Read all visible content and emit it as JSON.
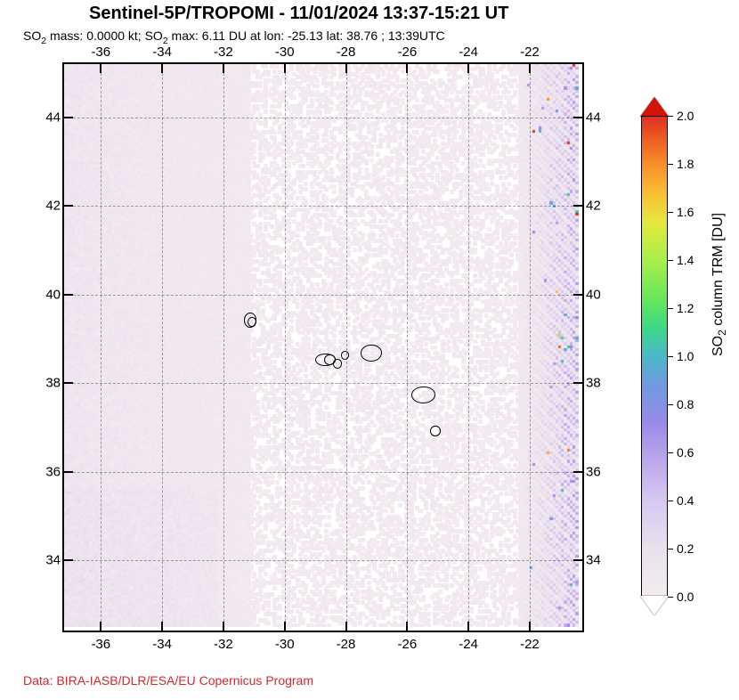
{
  "title": "Sentinel-5P/TROPOMI - 11/01/2024 13:37-15:21 UT",
  "subtitle_html": "SO<sub>2</sub> mass: 0.0000 kt; SO<sub>2</sub> max: 6.11 DU at lon: -25.13 lat: 38.76 ; 13:39UTC",
  "credit_text": "Data: BIRA-IASB/DLR/ESA/EU Copernicus Program",
  "credit_color": "#d62728",
  "map": {
    "lon_min": -37.2,
    "lon_max": -20.4,
    "lat_min": 32.5,
    "lat_max": 45.2,
    "lon_ticks": [
      -36,
      -34,
      -32,
      -30,
      -28,
      -26,
      -24,
      -22
    ],
    "lat_ticks": [
      34,
      36,
      38,
      40,
      42,
      44
    ],
    "grid_color": "rgba(0,0,0,0.35)",
    "background": "#ffffff",
    "noise_cols": 180,
    "noise_rows": 196,
    "islands": [
      {
        "lon": -31.15,
        "lat": 39.45,
        "w_lon": 0.35,
        "h_lat": 0.3
      },
      {
        "lon": -31.1,
        "lat": 39.4,
        "w_lon": 0.22,
        "h_lat": 0.18
      },
      {
        "lon": -28.7,
        "lat": 38.55,
        "w_lon": 0.6,
        "h_lat": 0.25
      },
      {
        "lon": -28.55,
        "lat": 38.55,
        "w_lon": 0.3,
        "h_lat": 0.2
      },
      {
        "lon": -28.3,
        "lat": 38.45,
        "w_lon": 0.25,
        "h_lat": 0.18
      },
      {
        "lon": -28.05,
        "lat": 38.65,
        "w_lon": 0.2,
        "h_lat": 0.15
      },
      {
        "lon": -27.2,
        "lat": 38.7,
        "w_lon": 0.65,
        "h_lat": 0.35
      },
      {
        "lon": -25.5,
        "lat": 37.75,
        "w_lon": 0.75,
        "h_lat": 0.35
      },
      {
        "lon": -25.1,
        "lat": 36.95,
        "w_lon": 0.3,
        "h_lat": 0.2
      }
    ]
  },
  "colorbar": {
    "title_html": "SO<sub>2</sub> column TRM [DU]",
    "min": 0.0,
    "max": 2.0,
    "ticks": [
      0.0,
      0.2,
      0.4,
      0.6,
      0.8,
      1.0,
      1.2,
      1.4,
      1.6,
      1.8,
      2.0
    ],
    "stops": [
      {
        "t": 0.0,
        "c": "#f5ecf0"
      },
      {
        "t": 0.1,
        "c": "#eae0ee"
      },
      {
        "t": 0.2,
        "c": "#d6c8f0"
      },
      {
        "t": 0.28,
        "c": "#bda8ec"
      },
      {
        "t": 0.36,
        "c": "#9a8ae8"
      },
      {
        "t": 0.44,
        "c": "#6f9ae0"
      },
      {
        "t": 0.5,
        "c": "#4bb8c8"
      },
      {
        "t": 0.56,
        "c": "#3cd987"
      },
      {
        "t": 0.62,
        "c": "#68e65a"
      },
      {
        "t": 0.7,
        "c": "#a8ef4a"
      },
      {
        "t": 0.78,
        "c": "#e6e83d"
      },
      {
        "t": 0.84,
        "c": "#f8bf34"
      },
      {
        "t": 0.9,
        "c": "#f78f2a"
      },
      {
        "t": 0.95,
        "c": "#ef5f22"
      },
      {
        "t": 1.0,
        "c": "#e03020"
      }
    ],
    "under_color": "#ffffff",
    "over_color": "#d11507"
  }
}
